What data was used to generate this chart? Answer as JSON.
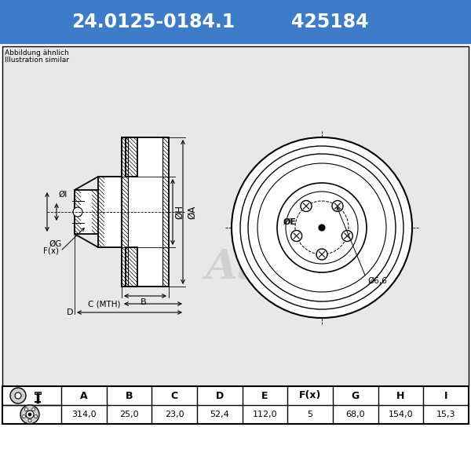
{
  "part_number": "24.0125-0184.1",
  "ref_number": "425184",
  "note_line1": "Abbildung ähnlich",
  "note_line2": "Illustration similar",
  "header_bg": "#3d7cc9",
  "header_text_color": "#ffffff",
  "bg_color": "#ffffff",
  "drawing_bg": "#e8e8e8",
  "table_headers": [
    "A",
    "B",
    "C",
    "D",
    "E",
    "F(x)",
    "G",
    "H",
    "I"
  ],
  "table_values": [
    "314,0",
    "25,0",
    "23,0",
    "52,4",
    "112,0",
    "5",
    "68,0",
    "154,0",
    "15,3"
  ],
  "dim_label_A": "ØA",
  "dim_label_H": "ØH",
  "dim_label_G": "ØG",
  "dim_label_I": "ØI",
  "dim_label_E": "ØE",
  "dim_label_F": "F(x)",
  "dim_label_B": "B",
  "dim_label_C": "C (MTH)",
  "dim_label_D": "D",
  "dim_label_d66": "Ø6,6"
}
